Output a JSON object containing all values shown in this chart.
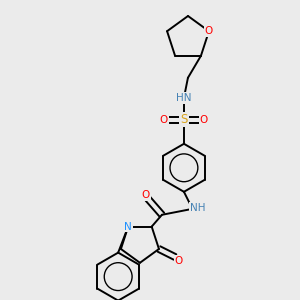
{
  "background_color": "#ebebeb",
  "atom_colors": {
    "C": "#000000",
    "N": "#1E90FF",
    "O": "#FF0000",
    "S": "#DAA520",
    "H_color": "#4682B4"
  },
  "bond_color": "#000000",
  "bond_width": 1.4,
  "font_size": 7.5,
  "hn_color": "#4682B4"
}
